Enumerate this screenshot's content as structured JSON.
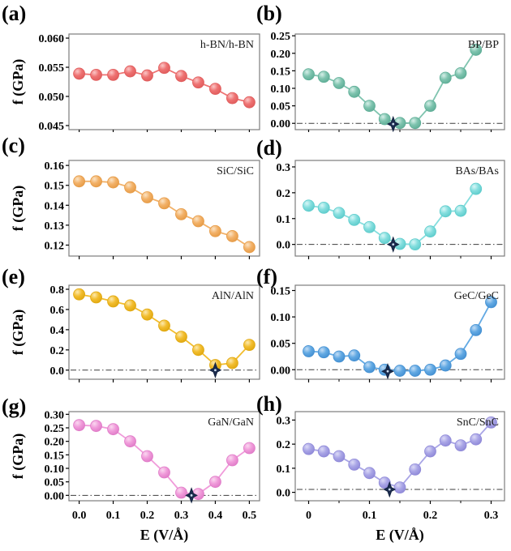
{
  "chart_data": [
    {
      "type": "line",
      "panel": "a",
      "letter": "(a)",
      "title": "h-BN/h-BN",
      "ylabel": "f (GPa)",
      "xlabel": "",
      "color": "#ee7272",
      "color_highlight": "#fbc6c6",
      "color_edge": "#e05c5c",
      "x": [
        0.0,
        0.05,
        0.1,
        0.15,
        0.2,
        0.25,
        0.3,
        0.35,
        0.4,
        0.45,
        0.5
      ],
      "y": [
        0.0539,
        0.0537,
        0.0537,
        0.0543,
        0.0536,
        0.0549,
        0.0535,
        0.0524,
        0.0513,
        0.0497,
        0.049
      ],
      "xlim": [
        -0.03,
        0.53
      ],
      "ylim": [
        0.0443,
        0.0607
      ],
      "xticks": [
        0.0,
        0.1,
        0.2,
        0.3,
        0.4,
        0.5
      ],
      "xtick_labels": [],
      "yticks": [
        0.045,
        0.05,
        0.055,
        0.06
      ],
      "ytick_labels": [
        "0.045",
        "0.050",
        "0.055",
        "0.060"
      ],
      "zero_line": false,
      "zero_y": 0,
      "star": null
    },
    {
      "type": "line",
      "panel": "b",
      "letter": "(b)",
      "title": "BP/BP",
      "ylabel": "",
      "xlabel": "",
      "color": "#7fc4af",
      "color_highlight": "#d6efe8",
      "color_edge": "#5fae97",
      "x": [
        0.0,
        0.025,
        0.05,
        0.075,
        0.1,
        0.125,
        0.15,
        0.175,
        0.2,
        0.225,
        0.25,
        0.275
      ],
      "y": [
        0.14,
        0.133,
        0.115,
        0.09,
        0.05,
        0.012,
        0.001,
        0.001,
        0.05,
        0.13,
        0.143,
        0.21
      ],
      "xlim": [
        -0.022,
        0.322
      ],
      "ylim": [
        -0.018,
        0.255
      ],
      "xticks": [
        0.0,
        0.1,
        0.2,
        0.3
      ],
      "xminor": [
        0.05,
        0.15,
        0.25
      ],
      "xtick_labels": [],
      "yticks": [
        0.0,
        0.05,
        0.1,
        0.15,
        0.2,
        0.25
      ],
      "ytick_labels": [
        "0.00",
        "0.05",
        "0.10",
        "0.15",
        "0.20",
        "0.25"
      ],
      "zero_line": true,
      "zero_y": 0,
      "star": {
        "x": 0.139,
        "y": -0.002
      }
    },
    {
      "type": "line",
      "panel": "c",
      "letter": "(c)",
      "title": "SiC/SiC",
      "ylabel": "f (GPa)",
      "xlabel": "",
      "color": "#f2b168",
      "color_highlight": "#fbe3c4",
      "color_edge": "#e69b46",
      "x": [
        0.0,
        0.05,
        0.1,
        0.15,
        0.2,
        0.25,
        0.3,
        0.35,
        0.4,
        0.45,
        0.5
      ],
      "y": [
        0.152,
        0.152,
        0.1515,
        0.149,
        0.144,
        0.141,
        0.1355,
        0.132,
        0.127,
        0.1245,
        0.119
      ],
      "xlim": [
        -0.03,
        0.53
      ],
      "ylim": [
        0.1145,
        0.1625
      ],
      "xticks": [
        0.0,
        0.1,
        0.2,
        0.3,
        0.4,
        0.5
      ],
      "xtick_labels": [],
      "yticks": [
        0.12,
        0.13,
        0.14,
        0.15,
        0.16
      ],
      "ytick_labels": [
        "0.12",
        "0.13",
        "0.14",
        "0.15",
        "0.16"
      ],
      "zero_line": false,
      "zero_y": 0,
      "star": null
    },
    {
      "type": "line",
      "panel": "d",
      "letter": "(d)",
      "title": "BAs/BAs",
      "ylabel": "",
      "xlabel": "",
      "color": "#84dede",
      "color_highlight": "#d8f7f7",
      "color_edge": "#5ecccc",
      "x": [
        0.0,
        0.025,
        0.05,
        0.075,
        0.1,
        0.125,
        0.15,
        0.175,
        0.2,
        0.225,
        0.25,
        0.275
      ],
      "y": [
        0.15,
        0.142,
        0.122,
        0.095,
        0.067,
        0.025,
        0.002,
        0.0,
        0.05,
        0.128,
        0.13,
        0.215
      ],
      "xlim": [
        -0.022,
        0.322
      ],
      "ylim": [
        -0.045,
        0.325
      ],
      "xticks": [
        0.0,
        0.1,
        0.2,
        0.3
      ],
      "xminor": [
        0.05,
        0.15,
        0.25
      ],
      "xtick_labels": [],
      "yticks": [
        0.0,
        0.1,
        0.2,
        0.3
      ],
      "ytick_labels": [
        "0.0",
        "0.1",
        "0.2",
        "0.3"
      ],
      "zero_line": true,
      "zero_y": 0,
      "star": {
        "x": 0.139,
        "y": 0.0
      }
    },
    {
      "type": "line",
      "panel": "e",
      "letter": "(e)",
      "title": "AlN/AlN",
      "ylabel": "f (GPa)",
      "xlabel": "",
      "color": "#f2bd2e",
      "color_highlight": "#fce9ae",
      "color_edge": "#e0a810",
      "x": [
        0.0,
        0.05,
        0.1,
        0.15,
        0.2,
        0.25,
        0.3,
        0.35,
        0.4,
        0.45,
        0.5
      ],
      "y": [
        0.75,
        0.72,
        0.68,
        0.64,
        0.55,
        0.44,
        0.33,
        0.2,
        0.05,
        0.07,
        0.25
      ],
      "xlim": [
        -0.03,
        0.53
      ],
      "ylim": [
        -0.09,
        0.84
      ],
      "xticks": [
        0.0,
        0.1,
        0.2,
        0.3,
        0.4,
        0.5
      ],
      "xtick_labels": [],
      "yticks": [
        0.0,
        0.2,
        0.4,
        0.6,
        0.8
      ],
      "ytick_labels": [
        "0.0",
        "0.2",
        "0.4",
        "0.6",
        "0.8"
      ],
      "zero_line": true,
      "zero_y": 0,
      "star": {
        "x": 0.4,
        "y": 0.0
      }
    },
    {
      "type": "line",
      "panel": "f",
      "letter": "(f)",
      "title": "GeC/GeC",
      "ylabel": "",
      "xlabel": "",
      "color": "#62a9e3",
      "color_highlight": "#c3ddf5",
      "color_edge": "#4490d2",
      "x": [
        0.0,
        0.025,
        0.05,
        0.075,
        0.1,
        0.125,
        0.15,
        0.175,
        0.2,
        0.225,
        0.25,
        0.275,
        0.3
      ],
      "y": [
        0.035,
        0.033,
        0.025,
        0.027,
        0.005,
        0.0,
        -0.002,
        -0.002,
        0.0,
        0.008,
        0.03,
        0.075,
        0.128
      ],
      "xlim": [
        -0.022,
        0.322
      ],
      "ylim": [
        -0.018,
        0.16
      ],
      "xticks": [
        0.0,
        0.1,
        0.2,
        0.3
      ],
      "xminor": [
        0.05,
        0.15,
        0.25
      ],
      "xtick_labels": [],
      "yticks": [
        0.0,
        0.05,
        0.1,
        0.15
      ],
      "ytick_labels": [
        "0.00",
        "0.05",
        "0.10",
        "0.15"
      ],
      "zero_line": true,
      "zero_y": 0,
      "star": {
        "x": 0.13,
        "y": -0.003
      }
    },
    {
      "type": "line",
      "panel": "g",
      "letter": "(g)",
      "title": "GaN/GaN",
      "ylabel": "f (GPa)",
      "xlabel": "E (V/Å)",
      "color": "#f09bda",
      "color_highlight": "#fad8f0",
      "color_edge": "#e07cc8",
      "x": [
        0.0,
        0.05,
        0.1,
        0.15,
        0.2,
        0.25,
        0.3,
        0.35,
        0.4,
        0.45,
        0.5
      ],
      "y": [
        0.26,
        0.257,
        0.245,
        0.2,
        0.145,
        0.085,
        0.01,
        0.005,
        0.05,
        0.13,
        0.175
      ],
      "xlim": [
        -0.03,
        0.53
      ],
      "ylim": [
        -0.02,
        0.31
      ],
      "xticks": [
        0.0,
        0.1,
        0.2,
        0.3,
        0.4,
        0.5
      ],
      "xtick_labels": [
        "0.0",
        "0.1",
        "0.2",
        "0.3",
        "0.4",
        "0.5"
      ],
      "yticks": [
        0.0,
        0.05,
        0.1,
        0.15,
        0.2,
        0.25,
        0.3
      ],
      "ytick_labels": [
        "0.00",
        "0.05",
        "0.10",
        "0.15",
        "0.20",
        "0.25",
        "0.30"
      ],
      "zero_line": true,
      "zero_y": 0,
      "star": {
        "x": 0.33,
        "y": 0.0
      }
    },
    {
      "type": "line",
      "panel": "h",
      "letter": "(h)",
      "title": "SnC/SnC",
      "ylabel": "",
      "xlabel": "E (V/Å)",
      "color": "#a9a5e6",
      "color_highlight": "#dcdaf6",
      "color_edge": "#8f89d8",
      "x": [
        0.0,
        0.025,
        0.05,
        0.075,
        0.1,
        0.125,
        0.15,
        0.175,
        0.2,
        0.225,
        0.25,
        0.275,
        0.3
      ],
      "y": [
        0.18,
        0.17,
        0.15,
        0.115,
        0.08,
        0.04,
        0.02,
        0.095,
        0.17,
        0.215,
        0.195,
        0.22,
        0.29
      ],
      "xlim": [
        -0.022,
        0.322
      ],
      "ylim": [
        -0.035,
        0.335
      ],
      "xticks": [
        0.0,
        0.1,
        0.2,
        0.3
      ],
      "xminor": [
        0.05,
        0.15,
        0.25
      ],
      "xtick_labels": [
        "0",
        "0.1",
        "0.2",
        "0.3"
      ],
      "yticks": [
        0.0,
        0.1,
        0.2,
        0.3
      ],
      "ytick_labels": [
        "0.0",
        "0.1",
        "0.2",
        "0.3"
      ],
      "zero_line": true,
      "zero_y": 0.012,
      "star": {
        "x": 0.133,
        "y": 0.012
      }
    }
  ]
}
